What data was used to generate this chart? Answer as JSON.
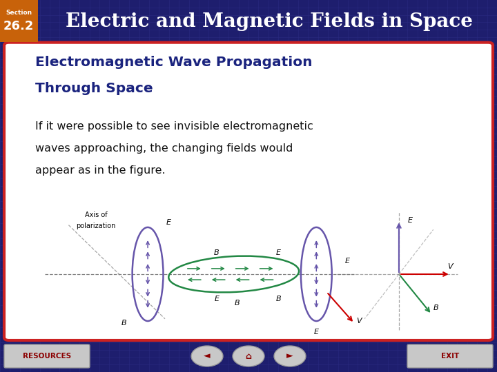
{
  "header_bg_color": "#8B0000",
  "section_box_color": "#C8620A",
  "section_label": "Section",
  "section_number": "26.2",
  "header_title": "Electric and Magnetic Fields in Space",
  "main_bg_color": "#1E1E6E",
  "grid_color": "#2A2A80",
  "content_bg_color": "#FFFFFF",
  "content_title_line1": "Electromagnetic Wave Propagation",
  "content_title_line2": "Through Space",
  "content_title_color": "#1a237e",
  "body_text_line1": "If it were possible to see invisible electromagnetic",
  "body_text_line2": "waves approaching, the changing fields would",
  "body_text_line3": "appear as in the figure.",
  "body_text_color": "#111111",
  "footer_bg_color": "#1E1E6E",
  "resources_label": "RESOURCES",
  "exit_label": "EXIT",
  "button_bg": "#C8C8C8",
  "button_text_color": "#8B0000",
  "border_color": "#CC2222",
  "purple": "#6655AA",
  "green": "#228844",
  "red": "#CC0000"
}
